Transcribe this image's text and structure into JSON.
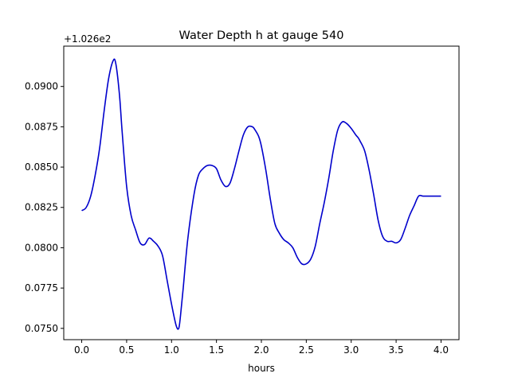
{
  "chart_data": {
    "type": "line",
    "title": "Water Depth h at gauge 540",
    "xlabel": "hours",
    "ylabel": "",
    "offset_label": "+1.026e2",
    "xlim": [
      -0.2,
      4.2
    ],
    "ylim": [
      0.0743,
      0.0925
    ],
    "xticks": [
      0.0,
      0.5,
      1.0,
      1.5,
      2.0,
      2.5,
      3.0,
      3.5,
      4.0
    ],
    "xtick_labels": [
      "0.0",
      "0.5",
      "1.0",
      "1.5",
      "2.0",
      "2.5",
      "3.0",
      "3.5",
      "4.0"
    ],
    "yticks": [
      0.075,
      0.0775,
      0.08,
      0.0825,
      0.085,
      0.0875,
      0.09
    ],
    "ytick_labels": [
      "0.0750",
      "0.0775",
      "0.0800",
      "0.0825",
      "0.0850",
      "0.0875",
      "0.0900"
    ],
    "grid": false,
    "series": [
      {
        "name": "",
        "color": "#0000cc",
        "x": [
          0.0,
          0.05,
          0.1,
          0.15,
          0.2,
          0.25,
          0.3,
          0.35,
          0.38,
          0.42,
          0.45,
          0.5,
          0.55,
          0.6,
          0.65,
          0.7,
          0.75,
          0.8,
          0.85,
          0.9,
          0.95,
          1.0,
          1.05,
          1.08,
          1.1,
          1.13,
          1.18,
          1.25,
          1.3,
          1.35,
          1.4,
          1.45,
          1.5,
          1.55,
          1.6,
          1.65,
          1.7,
          1.75,
          1.8,
          1.85,
          1.9,
          1.93,
          1.97,
          2.0,
          2.05,
          2.1,
          2.15,
          2.2,
          2.25,
          2.3,
          2.35,
          2.4,
          2.45,
          2.5,
          2.55,
          2.6,
          2.65,
          2.7,
          2.75,
          2.8,
          2.85,
          2.9,
          2.95,
          3.0,
          3.05,
          3.08,
          3.1,
          3.15,
          3.2,
          3.25,
          3.3,
          3.35,
          3.4,
          3.45,
          3.5,
          3.55,
          3.6,
          3.65,
          3.7,
          3.75,
          3.8,
          3.85,
          3.9,
          3.95,
          4.0
        ],
        "values": [
          0.0823,
          0.0825,
          0.0832,
          0.0845,
          0.0862,
          0.0885,
          0.0905,
          0.0916,
          0.0914,
          0.0895,
          0.0872,
          0.0838,
          0.082,
          0.0811,
          0.0803,
          0.0802,
          0.0806,
          0.0804,
          0.0801,
          0.0795,
          0.078,
          0.0765,
          0.0752,
          0.075,
          0.0758,
          0.0775,
          0.0805,
          0.0833,
          0.0845,
          0.0849,
          0.0851,
          0.0851,
          0.0849,
          0.0842,
          0.0838,
          0.084,
          0.0849,
          0.086,
          0.087,
          0.0875,
          0.0875,
          0.0873,
          0.0869,
          0.0863,
          0.0848,
          0.083,
          0.0815,
          0.0809,
          0.0805,
          0.0803,
          0.08,
          0.0794,
          0.079,
          0.079,
          0.0793,
          0.0801,
          0.0815,
          0.0828,
          0.0843,
          0.086,
          0.0873,
          0.0878,
          0.0877,
          0.0874,
          0.087,
          0.0868,
          0.0866,
          0.086,
          0.0848,
          0.0833,
          0.0817,
          0.0807,
          0.0804,
          0.0804,
          0.0803,
          0.0805,
          0.0812,
          0.082,
          0.0826,
          0.0832,
          0.0832,
          0.0832,
          0.0832,
          0.0832,
          0.0832
        ]
      }
    ]
  }
}
